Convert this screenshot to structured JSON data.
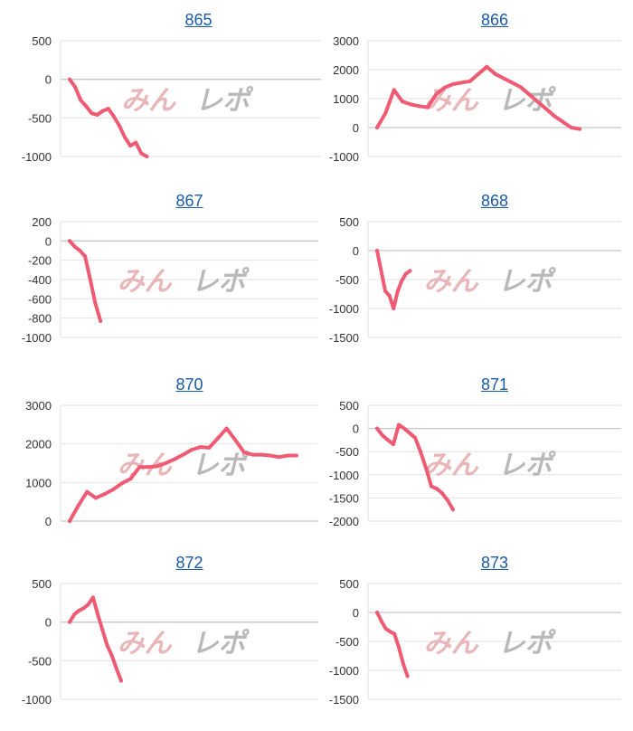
{
  "watermark": {
    "text": "みんレポ",
    "color_a": "#e8b6b8",
    "color_b": "#b9b9b9"
  },
  "colors": {
    "line": "#ee5b73",
    "grid": "#e2e2e2",
    "zero": "#c7c7c7",
    "title": "#1a5aa8",
    "tick": "#333333"
  },
  "chart_data": [
    {
      "type": "line",
      "title": "865",
      "yticks": [
        500,
        0,
        -500,
        -1000
      ],
      "ylim": [
        -1000,
        500
      ],
      "x": [
        0,
        1,
        2,
        3,
        4,
        5,
        6,
        7,
        8,
        9,
        10,
        11,
        12,
        13,
        14
      ],
      "values": [
        0,
        -100,
        -270,
        -350,
        -440,
        -460,
        -410,
        -380,
        -480,
        -600,
        -750,
        -860,
        -820,
        -960,
        -1000
      ]
    },
    {
      "type": "line",
      "title": "866",
      "yticks": [
        3000,
        2000,
        1000,
        0,
        -1000
      ],
      "ylim": [
        -1000,
        3000
      ],
      "x": [
        0,
        1,
        2,
        3,
        4,
        5,
        6,
        7,
        8,
        9,
        10,
        11,
        12,
        13,
        14,
        15,
        16,
        17,
        18,
        19,
        20,
        21,
        22,
        23,
        24
      ],
      "values": [
        0,
        500,
        1300,
        900,
        800,
        740,
        700,
        1150,
        1380,
        1500,
        1550,
        1600,
        1850,
        2100,
        1850,
        1700,
        1550,
        1400,
        1150,
        900,
        650,
        400,
        200,
        0,
        -50
      ]
    },
    {
      "type": "line",
      "title": "867",
      "yticks": [
        200,
        0,
        -200,
        -400,
        -600,
        -800,
        -1000
      ],
      "ylim": [
        -1000,
        200
      ],
      "x": [
        0,
        1,
        2,
        3,
        4,
        5,
        6
      ],
      "values": [
        0,
        -60,
        -100,
        -160,
        -400,
        -650,
        -830
      ]
    },
    {
      "type": "line",
      "title": "868",
      "yticks": [
        500,
        0,
        -500,
        -1000,
        -1500
      ],
      "ylim": [
        -1500,
        500
      ],
      "x": [
        0,
        1,
        2,
        3,
        4,
        5,
        6,
        7,
        8
      ],
      "values": [
        0,
        -350,
        -700,
        -780,
        -1000,
        -700,
        -520,
        -400,
        -350
      ]
    },
    {
      "type": "line",
      "title": "870",
      "yticks": [
        3000,
        2000,
        1000,
        0
      ],
      "ylim": [
        0,
        3000
      ],
      "x": [
        0,
        1,
        2,
        3,
        4,
        5,
        6,
        7,
        8,
        9,
        10,
        11,
        12,
        13,
        14,
        15,
        16,
        17,
        18,
        19,
        20,
        21,
        22,
        23,
        24,
        25,
        26
      ],
      "values": [
        0,
        400,
        760,
        600,
        700,
        820,
        980,
        1100,
        1400,
        1400,
        1420,
        1500,
        1600,
        1720,
        1850,
        1920,
        1900,
        2150,
        2400,
        2100,
        1780,
        1720,
        1720,
        1700,
        1660,
        1700,
        1700
      ]
    },
    {
      "type": "line",
      "title": "871",
      "yticks": [
        500,
        0,
        -500,
        -1000,
        -1500,
        -2000
      ],
      "ylim": [
        -2000,
        500
      ],
      "x": [
        0,
        1,
        2,
        3,
        4,
        5,
        6,
        7,
        8,
        9,
        10,
        11,
        12,
        13,
        14
      ],
      "values": [
        0,
        -150,
        -250,
        -340,
        80,
        0,
        -100,
        -200,
        -500,
        -850,
        -1250,
        -1300,
        -1400,
        -1550,
        -1750
      ]
    },
    {
      "type": "line",
      "title": "872",
      "yticks": [
        500,
        0,
        -500,
        -1000
      ],
      "ylim": [
        -1000,
        500
      ],
      "x": [
        0,
        1,
        2,
        3,
        4,
        5,
        6,
        7,
        8,
        9,
        10,
        11
      ],
      "values": [
        0,
        100,
        150,
        180,
        230,
        320,
        100,
        -100,
        -300,
        -430,
        -600,
        -760
      ]
    },
    {
      "type": "line",
      "title": "873",
      "yticks": [
        500,
        0,
        -500,
        -1000,
        -1500
      ],
      "ylim": [
        -1500,
        500
      ],
      "x": [
        0,
        1,
        2,
        3,
        4,
        5,
        6,
        7
      ],
      "values": [
        0,
        -150,
        -280,
        -330,
        -370,
        -600,
        -880,
        -1100
      ]
    }
  ]
}
